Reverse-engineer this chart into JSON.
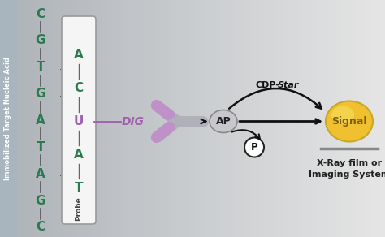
{
  "target_letters": [
    "C",
    "G",
    "T",
    "G",
    "A",
    "T",
    "A",
    "G",
    "C"
  ],
  "target_lines": [
    "-",
    "-",
    "-",
    "-",
    "-",
    "-",
    "-",
    "-",
    "-"
  ],
  "probe_letters": [
    "A",
    "C",
    "U",
    "A",
    "T"
  ],
  "target_color": "#2a7a50",
  "probe_color": "#2a7a50",
  "u_color": "#a060b0",
  "dig_color": "#a060b0",
  "antibody_body_color": "#b0b0b8",
  "antibody_arm_color": "#c090c8",
  "ap_fill": "#c8c8cc",
  "ap_edge": "#888888",
  "signal_fill_outer": "#f0c030",
  "signal_fill_inner": "#f8e060",
  "signal_text": "#7a6010",
  "arrow_color": "#111111",
  "probe_box_edge": "#999999",
  "probe_box_fill": "#f5f5f5",
  "sidebar_color": "#a8b4be",
  "bg_left": "#b8c0c8",
  "bg_right": "#e8eaec",
  "label_immobilized": "Immobilized Target Nucleic Acid",
  "label_probe": "Probe",
  "label_dig": "DIG",
  "label_ap": "AP",
  "label_p": "P",
  "label_signal": "Signal",
  "label_xray1": "X-Ray film or",
  "label_xray2": "Imaging System",
  "cdp_label": "CDP-",
  "star_label": "Star"
}
